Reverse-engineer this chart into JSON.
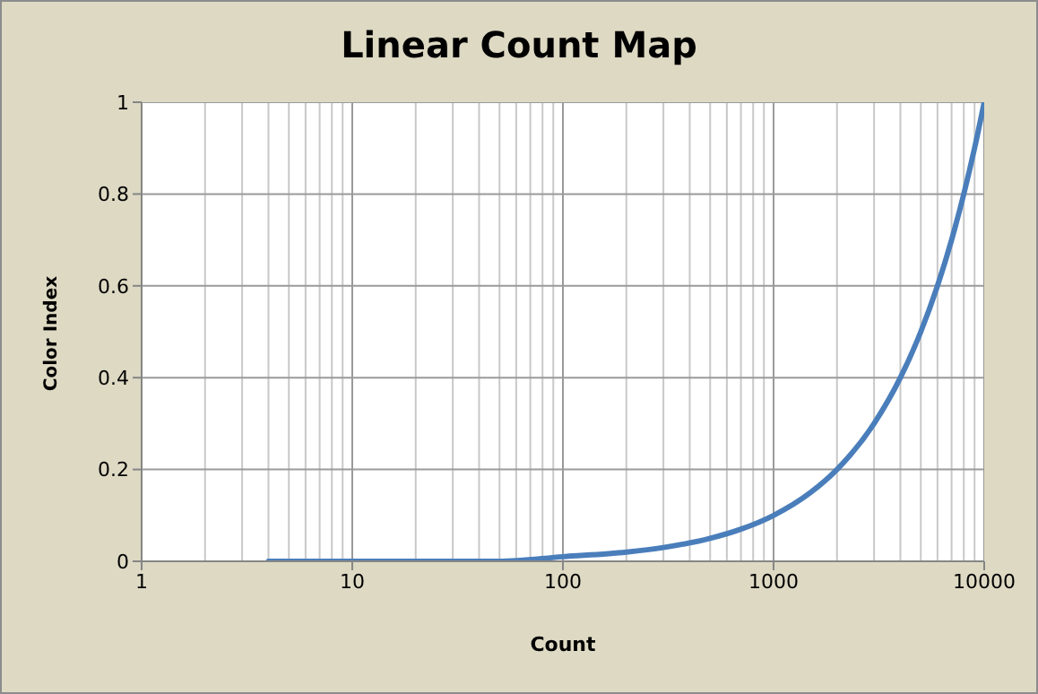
{
  "chart_data": {
    "type": "line",
    "title": "Linear Count Map",
    "xlabel": "Count",
    "ylabel": "Color Index",
    "x": [
      4,
      10,
      20,
      50,
      100,
      200,
      300,
      500,
      700,
      1000,
      1500,
      2000,
      3000,
      4000,
      5000,
      6000,
      7000,
      8000,
      9000,
      10000
    ],
    "series": [
      {
        "color": "#4a7ebb",
        "values": [
          0,
          0,
          0,
          0,
          0.01,
          0.02,
          0.03,
          0.05,
          0.07,
          0.1,
          0.15,
          0.2,
          0.3,
          0.4,
          0.5,
          0.6,
          0.7,
          0.8,
          0.9,
          1
        ]
      }
    ],
    "log": "x",
    "xlim": [
      1,
      10000
    ],
    "xticks": [
      1,
      10,
      100,
      1000,
      10000
    ],
    "ylim": [
      0,
      1
    ],
    "yticks": [
      0,
      0.2,
      0.4,
      0.6,
      0.8,
      1
    ],
    "grid": true,
    "marker": "none",
    "line_style": "solid"
  }
}
